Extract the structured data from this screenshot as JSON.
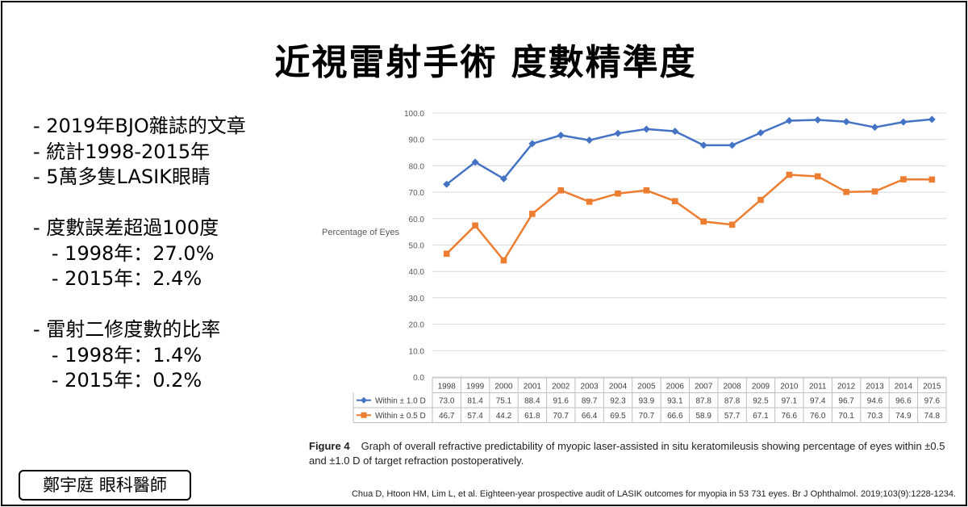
{
  "page": {
    "title": "近視雷射手術 度數精準度",
    "bullets": [
      "- 2019年BJO雜誌的文章",
      "- 統計1998-2015年",
      "- 5萬多隻LASIK眼睛",
      "",
      "- 度數誤差超過100度",
      "   - 1998年：27.0%",
      "   - 2015年：2.4%",
      "",
      "- 雷射二修度數的比率",
      "   - 1998年：1.4%",
      "   - 2015年：0.2%"
    ],
    "doctor_label": "鄭宇庭 眼科醫師",
    "caption_label": "Figure 4",
    "caption_text": "Graph of overall refractive predictability of myopic laser-assisted in situ keratomileusis showing percentage of eyes within ±0.5 and ±1.0 D of target refraction postoperatively.",
    "citation": "Chua D, Htoon HM, Lim L, et al. Eighteen-year prospective audit of LASIK outcomes for myopia in 53 731 eyes. Br J Ophthalmol. 2019;103(9):1228-1234."
  },
  "chart_data": {
    "type": "line",
    "title": "",
    "xlabel": "",
    "ylabel": "Percentage of Eyes",
    "ylim": [
      0,
      100
    ],
    "yticks": [
      "0.0",
      "10.0",
      "20.0",
      "30.0",
      "40.0",
      "50.0",
      "60.0",
      "70.0",
      "80.0",
      "90.0",
      "100.0"
    ],
    "grid": true,
    "legend": "data-table",
    "categories": [
      "1998",
      "1999",
      "2000",
      "2001",
      "2002",
      "2003",
      "2004",
      "2005",
      "2006",
      "2007",
      "2008",
      "2009",
      "2010",
      "2011",
      "2012",
      "2013",
      "2014",
      "2015"
    ],
    "series": [
      {
        "name": "Within ± 1.0 D",
        "color": "#4472C4",
        "marker": "diamond",
        "values": [
          73.0,
          81.4,
          75.1,
          88.4,
          91.6,
          89.7,
          92.3,
          93.9,
          93.1,
          87.8,
          87.8,
          92.5,
          97.1,
          97.4,
          96.7,
          94.6,
          96.6,
          97.6
        ],
        "labels": [
          "73.0",
          "81.4",
          "75.1",
          "88.4",
          "91.6",
          "89.7",
          "92.3",
          "93.9",
          "93.1",
          "87.8",
          "87.8",
          "92.5",
          "97.1",
          "97.4",
          "96.7",
          "94.6",
          "96.6",
          "97.6"
        ]
      },
      {
        "name": "Within ± 0.5 D",
        "color": "#ED7D31",
        "marker": "square",
        "values": [
          46.7,
          57.4,
          44.2,
          61.8,
          70.7,
          66.4,
          69.5,
          70.7,
          66.6,
          58.9,
          57.7,
          67.1,
          76.6,
          76.0,
          70.1,
          70.3,
          74.9,
          74.8
        ],
        "labels": [
          "46.7",
          "57.4",
          "44.2",
          "61.8",
          "70.7",
          "66.4",
          "69.5",
          "70.7",
          "66.6",
          "58.9",
          "57.7",
          "67.1",
          "76.6",
          "76.0",
          "70.1",
          "70.3",
          "74.9",
          "74.8"
        ]
      }
    ]
  }
}
